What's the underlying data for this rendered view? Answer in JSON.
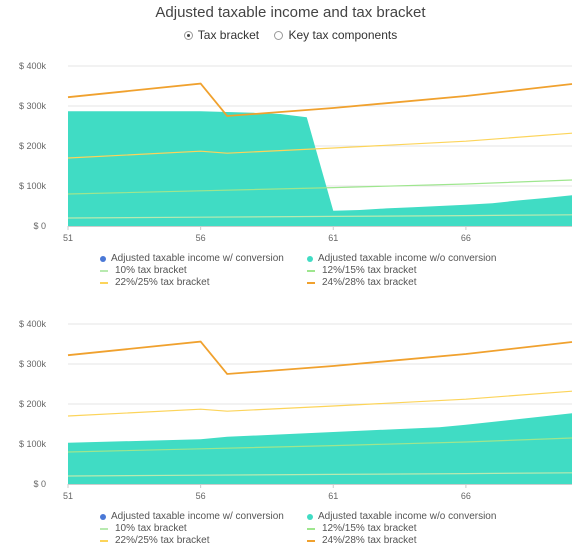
{
  "title": "Adjusted taxable income and tax bracket",
  "radios": [
    {
      "label": "Tax bracket",
      "selected": true
    },
    {
      "label": "Key tax components",
      "selected": false
    }
  ],
  "colors": {
    "with_conversion": "#4a78d6",
    "without_conversion": "#40dcc4",
    "bracket_10": "#b8eab0",
    "bracket_12_15": "#9ee68e",
    "bracket_22_25": "#fcd45a",
    "bracket_24_28": "#f0a12e",
    "grid": "#e6e6e6",
    "axis": "#cccccc"
  },
  "legend": [
    {
      "label": "Adjusted taxable income w/ conversion",
      "kind": "dot",
      "color": "#4a78d6"
    },
    {
      "label": "Adjusted taxable income w/o conversion",
      "kind": "dot",
      "color": "#40dcc4"
    },
    {
      "label": "10% tax bracket",
      "kind": "line",
      "color": "#b8eab0"
    },
    {
      "label": "12%/15% tax bracket",
      "kind": "line",
      "color": "#9ee68e"
    },
    {
      "label": "22%/25% tax bracket",
      "kind": "line",
      "color": "#fcd45a"
    },
    {
      "label": "24%/28% tax bracket",
      "kind": "line",
      "color": "#f0a12e"
    }
  ],
  "chart_data": [
    {
      "type": "area",
      "title": "",
      "xlabel": "",
      "ylabel": "",
      "xlim": [
        51,
        70
      ],
      "ylim": [
        0,
        400000
      ],
      "xticks": [
        "51",
        "56",
        "61",
        "66"
      ],
      "yticks": [
        "$ 0",
        "$ 100k",
        "$ 200k",
        "$ 300k",
        "$ 400k"
      ],
      "grid": true,
      "series": [
        {
          "name": "Adjusted taxable income w/o conversion",
          "kind": "area",
          "x": [
            51,
            56,
            57,
            58,
            59,
            60,
            61,
            62,
            63,
            64,
            65,
            66,
            67,
            68,
            69,
            70
          ],
          "y": [
            287000,
            287000,
            285000,
            283000,
            280000,
            272000,
            38000,
            40000,
            44000,
            47000,
            50000,
            53000,
            57000,
            64000,
            70000,
            77000
          ]
        },
        {
          "name": "10% tax bracket",
          "kind": "line",
          "x": [
            51,
            56,
            61,
            66,
            70
          ],
          "y": [
            20000,
            22000,
            24000,
            26000,
            28000
          ]
        },
        {
          "name": "12%/15% tax bracket",
          "kind": "line",
          "x": [
            51,
            56,
            61,
            66,
            70
          ],
          "y": [
            80000,
            88000,
            96000,
            105000,
            115000
          ]
        },
        {
          "name": "22%/25% tax bracket",
          "kind": "line",
          "x": [
            51,
            56,
            57,
            61,
            66,
            70
          ],
          "y": [
            170000,
            187000,
            182000,
            195000,
            212000,
            232000
          ]
        },
        {
          "name": "24%/28% tax bracket",
          "kind": "line",
          "x": [
            51,
            56,
            57,
            61,
            66,
            70
          ],
          "y": [
            322000,
            356000,
            275000,
            295000,
            325000,
            355000
          ]
        }
      ]
    },
    {
      "type": "area",
      "title": "",
      "xlabel": "",
      "ylabel": "",
      "xlim": [
        51,
        70
      ],
      "ylim": [
        0,
        400000
      ],
      "xticks": [
        "51",
        "56",
        "61",
        "66"
      ],
      "yticks": [
        "$ 0",
        "$ 100k",
        "$ 200k",
        "$ 300k",
        "$ 400k"
      ],
      "grid": true,
      "series": [
        {
          "name": "Adjusted taxable income w/o conversion",
          "kind": "area",
          "x": [
            51,
            56,
            57,
            61,
            65,
            66,
            70
          ],
          "y": [
            103000,
            112000,
            118000,
            130000,
            142000,
            148000,
            177000
          ]
        },
        {
          "name": "10% tax bracket",
          "kind": "line",
          "x": [
            51,
            56,
            61,
            66,
            70
          ],
          "y": [
            20000,
            22000,
            24000,
            26000,
            28000
          ]
        },
        {
          "name": "12%/15% tax bracket",
          "kind": "line",
          "x": [
            51,
            56,
            61,
            66,
            70
          ],
          "y": [
            80000,
            88000,
            96000,
            105000,
            115000
          ]
        },
        {
          "name": "22%/25% tax bracket",
          "kind": "line",
          "x": [
            51,
            56,
            57,
            61,
            66,
            70
          ],
          "y": [
            170000,
            187000,
            182000,
            195000,
            212000,
            232000
          ]
        },
        {
          "name": "24%/28% tax bracket",
          "kind": "line",
          "x": [
            51,
            56,
            57,
            61,
            66,
            70
          ],
          "y": [
            322000,
            356000,
            275000,
            295000,
            325000,
            355000
          ]
        }
      ]
    }
  ]
}
